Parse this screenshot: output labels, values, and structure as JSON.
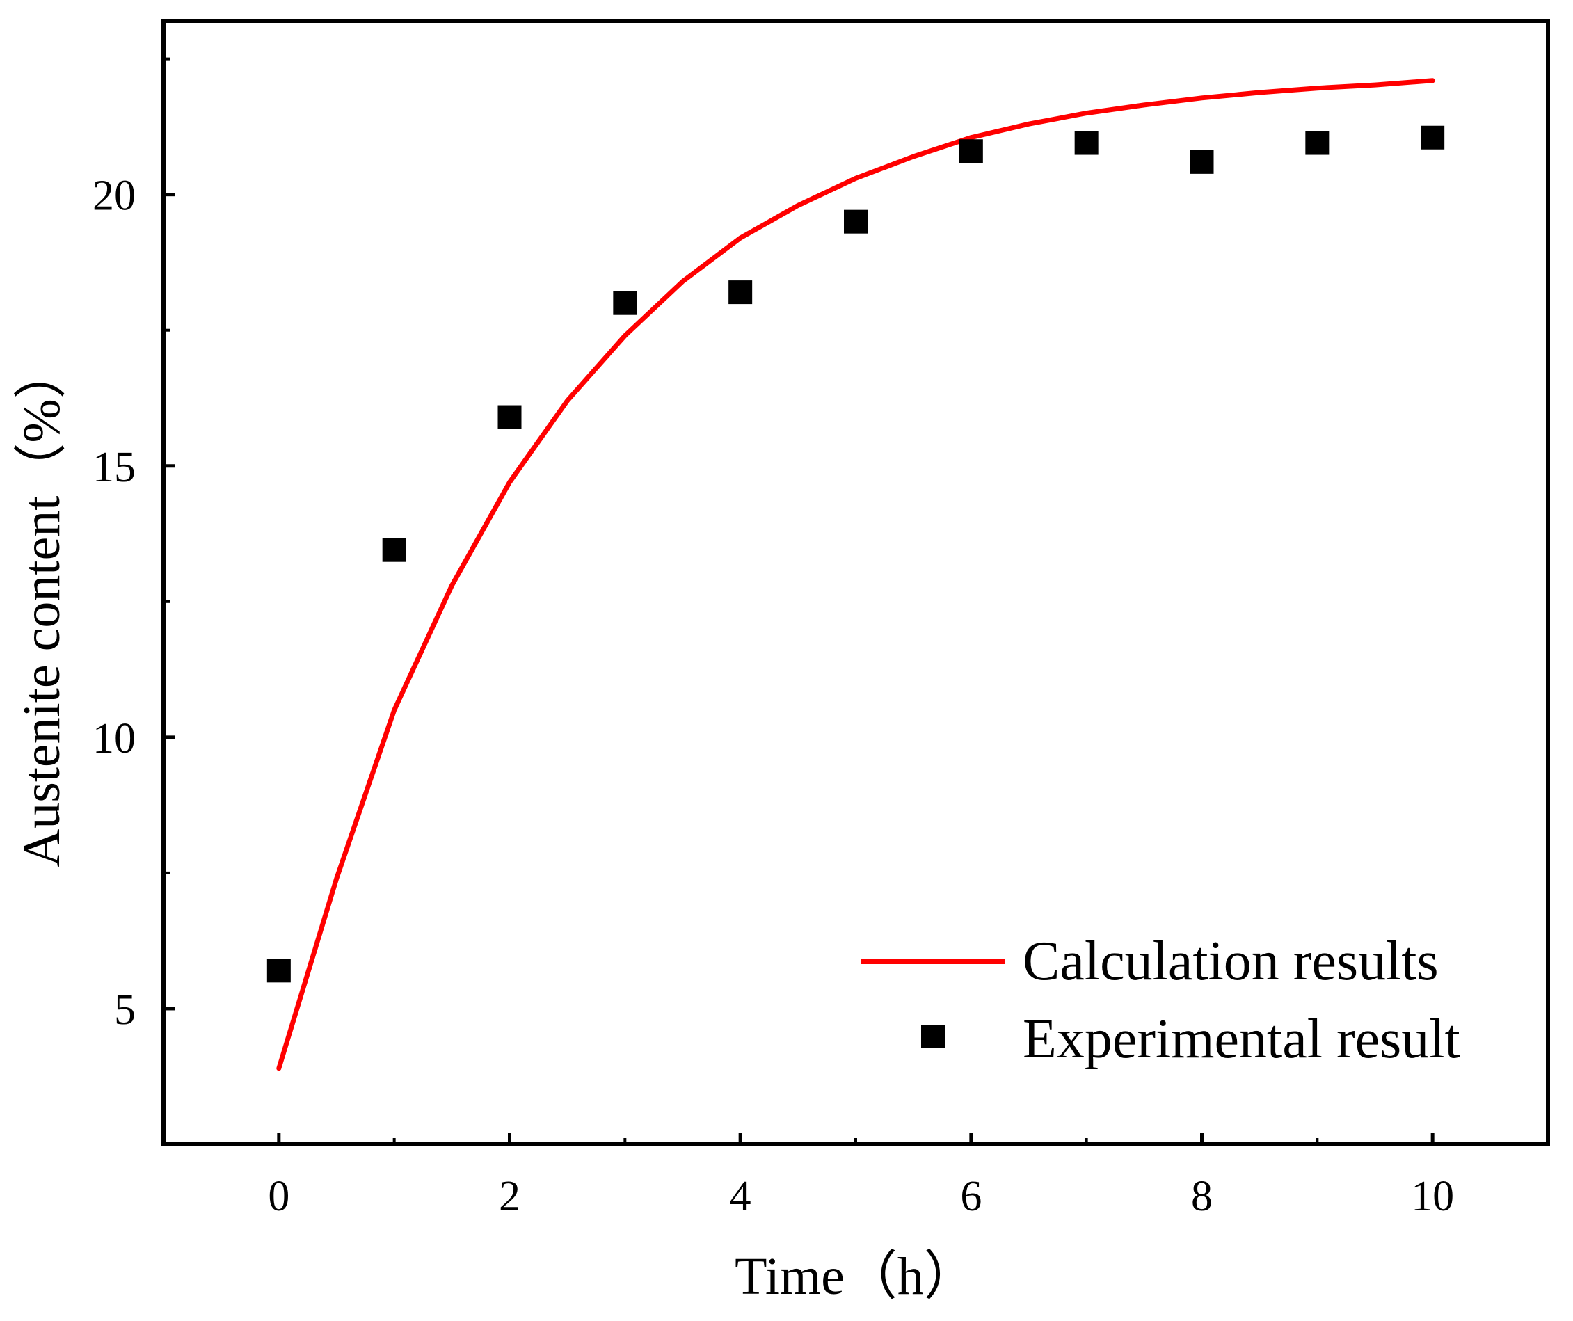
{
  "chart_data": {
    "type": "scatter",
    "title": "",
    "xlabel": "Time（h）",
    "ylabel": "Austenite content（%）",
    "xlim": [
      -1,
      11
    ],
    "ylim": [
      2.5,
      23.2
    ],
    "x_ticks": [
      0,
      2,
      4,
      6,
      8,
      10
    ],
    "x_minor_ticks": [
      1,
      3,
      5,
      7,
      9
    ],
    "y_ticks": [
      5,
      10,
      15,
      20
    ],
    "y_minor_ticks": [
      7.5,
      12.5,
      17.5,
      22.5
    ],
    "grid": false,
    "legend_position": "bottom-right",
    "series": [
      {
        "name": "Calculation results",
        "kind": "line",
        "color": "#ff0000",
        "x": [
          0,
          0.5,
          1,
          1.5,
          2,
          2.5,
          3,
          3.5,
          4,
          4.5,
          5,
          5.5,
          6,
          6.5,
          7,
          7.5,
          8,
          8.5,
          9,
          9.5,
          10
        ],
        "values": [
          3.9,
          7.4,
          10.5,
          12.8,
          14.7,
          16.2,
          17.4,
          18.4,
          19.2,
          19.8,
          20.3,
          20.7,
          21.05,
          21.3,
          21.5,
          21.65,
          21.78,
          21.88,
          21.96,
          22.02,
          22.1
        ]
      },
      {
        "name": "Experimental result",
        "kind": "scatter",
        "marker": "square",
        "color": "#000000",
        "x": [
          0,
          1,
          2,
          3,
          4,
          5,
          6,
          7,
          8,
          9,
          10
        ],
        "values": [
          5.7,
          13.45,
          15.9,
          18.0,
          18.2,
          19.5,
          20.8,
          20.95,
          20.6,
          20.95,
          21.05
        ]
      }
    ]
  }
}
